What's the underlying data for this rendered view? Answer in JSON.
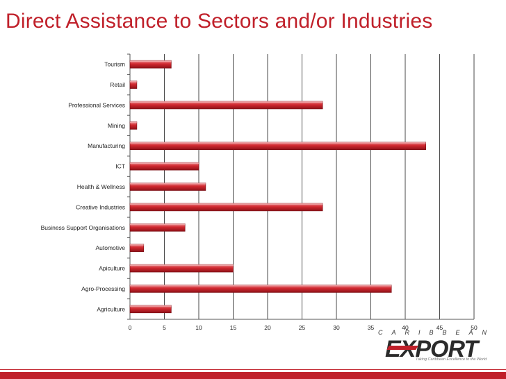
{
  "title": "Direct Assistance to Sectors and/or Industries",
  "logo": {
    "brand_text": "CARIBBEAN",
    "word": "EXPORT",
    "tagline": "Taking Caribbean Excellence to the World"
  },
  "colors": {
    "title": "#c0202a",
    "bar": "#c8232c",
    "bar_light": "#ec8a8e",
    "bar_dark": "#8e1219"
  },
  "chart_data": {
    "type": "bar",
    "orientation": "horizontal",
    "title": "Direct Assistance to Sectors and/or Industries",
    "categories": [
      "Tourism",
      "Retail",
      "Professional Services",
      "Mining",
      "Manufacturing",
      "ICT",
      "Health & Wellness",
      "Creative Industries",
      "Business Support Organisations",
      "Automotive",
      "Apiculture",
      "Agro-Processing",
      "Agriculture"
    ],
    "values": [
      6,
      1,
      28,
      1,
      43,
      10,
      11,
      28,
      8,
      2,
      15,
      38,
      6
    ],
    "xlim": [
      0,
      50
    ],
    "xticks": [
      0,
      5,
      10,
      15,
      20,
      25,
      30,
      35,
      40,
      45,
      50
    ],
    "grid": "vertical",
    "legend": "none"
  }
}
